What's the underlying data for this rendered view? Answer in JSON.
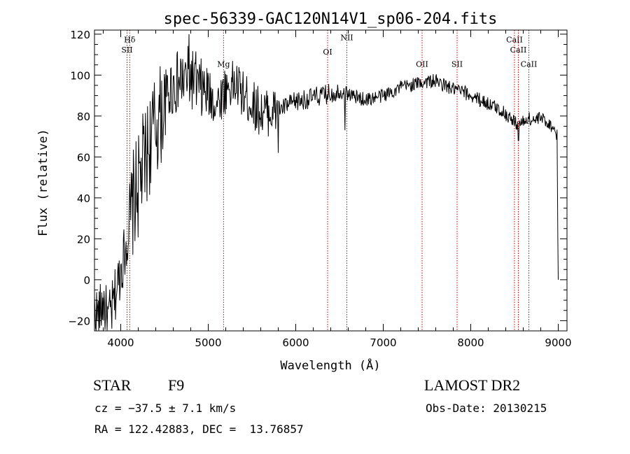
{
  "chart_data": {
    "type": "line",
    "title": "spec-56339-GAC120N14V1_sp06-204.fits",
    "xlabel": "Wavelength (Å)",
    "ylabel": "Flux (relative)",
    "xlim": [
      3700,
      9100
    ],
    "ylim": [
      -25,
      122
    ],
    "x_ticks": [
      4000,
      5000,
      6000,
      7000,
      8000,
      9000
    ],
    "y_ticks": [
      -20,
      0,
      20,
      40,
      60,
      80,
      100,
      120
    ],
    "grid": false,
    "line_color": "#000000",
    "marker_color": "#cc0000",
    "spectrum_envelope": {
      "x": [
        3700,
        3750,
        3800,
        3850,
        3900,
        3950,
        4000,
        4050,
        4100,
        4150,
        4200,
        4250,
        4300,
        4350,
        4400,
        4450,
        4500,
        4550,
        4600,
        4650,
        4700,
        4750,
        4800,
        4850,
        4900,
        4950,
        5000,
        5050,
        5100,
        5150,
        5200,
        5250,
        5300,
        5350,
        5400,
        5450,
        5500,
        5550,
        5600,
        5650,
        5700,
        5750,
        5800,
        5850,
        5900,
        5950,
        6000,
        6100,
        6200,
        6300,
        6400,
        6500,
        6600,
        6700,
        6800,
        6900,
        7000,
        7100,
        7200,
        7300,
        7400,
        7500,
        7600,
        7700,
        7800,
        7900,
        8000,
        8100,
        8200,
        8300,
        8400,
        8450,
        8500,
        8550,
        8600,
        8650,
        8700,
        8750,
        8800,
        8850,
        8900,
        8950,
        8990,
        9000
      ],
      "y": [
        -15,
        -18,
        -10,
        -20,
        -15,
        -5,
        5,
        15,
        25,
        40,
        45,
        55,
        62,
        70,
        75,
        80,
        85,
        92,
        95,
        96,
        97,
        98,
        99,
        97,
        93,
        92,
        90,
        88,
        86,
        90,
        93,
        95,
        95,
        94,
        90,
        88,
        86,
        84,
        82,
        82,
        82,
        82,
        83,
        84,
        85,
        86,
        87,
        88,
        89,
        90,
        91,
        92,
        91,
        89,
        88,
        89,
        90,
        92,
        94,
        95,
        96,
        97,
        97,
        95,
        93,
        92,
        90,
        88,
        86,
        84,
        81,
        79,
        77,
        76,
        77,
        79,
        78,
        78,
        79,
        78,
        76,
        74,
        70,
        0
      ]
    },
    "line_markers": [
      {
        "label": "Hδ",
        "x": 4102,
        "label_y": 116
      },
      {
        "label": "SII",
        "x": 4072,
        "label_y": 111
      },
      {
        "label": "Mg",
        "x": 5175,
        "label_y": 104
      },
      {
        "label": "OI",
        "x": 6364,
        "label_y": 110
      },
      {
        "label": "NII",
        "x": 6584,
        "label_y": 117
      },
      {
        "label": "OII",
        "x": 7444,
        "label_y": 104
      },
      {
        "label": "SII",
        "x": 7844,
        "label_y": 104
      },
      {
        "label": "CaII",
        "x": 8500,
        "label_y": 116
      },
      {
        "label": "CaII",
        "x": 8544,
        "label_y": 111
      },
      {
        "label": "CaII",
        "x": 8664,
        "label_y": 104
      }
    ]
  },
  "info": {
    "object_class": "STAR",
    "subclass": "F9",
    "redshift_line": "cz = −37.5 ± 7.1 km/s",
    "coords_line": "RA = 122.42883, DEC =  13.76857",
    "survey": "LAMOST DR2",
    "obs_date": "Obs-Date: 20130215"
  }
}
